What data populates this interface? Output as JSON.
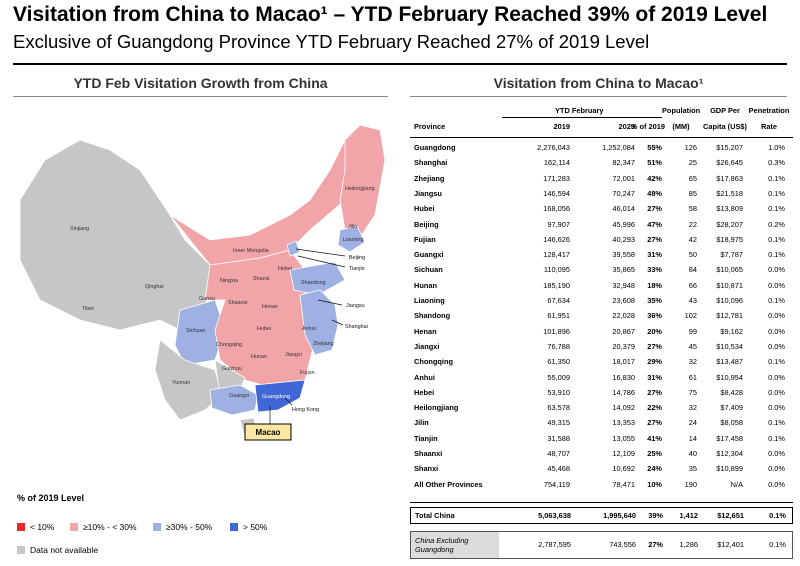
{
  "header": {
    "title": "Visitation from China to Macao¹ – YTD February Reached 39% of 2019 Level",
    "subtitle": "Exclusive of Guangdong Province YTD February Reached 27% of 2019 Level"
  },
  "colors": {
    "below_10": "#e8262c",
    "from_10_to_30": "#f2a5a9",
    "from_30_to_50": "#9fb0e3",
    "above_50": "#3f68d6",
    "not_available": "#c6c6c6"
  },
  "map": {
    "title": "YTD Feb Visitation Growth from China",
    "province_labels": [
      "Xinjiang",
      "Tibet",
      "Qinghai",
      "Gansu",
      "Inner Mongolia",
      "Ningxia",
      "Shaanxi",
      "Sichuan",
      "Yunnan",
      "Guizhou",
      "Guangxi",
      "Chongqing",
      "Hubei",
      "Hunan",
      "Henan",
      "Shanxi",
      "Hebei",
      "Shandong",
      "Jiangxi",
      "Anhui",
      "Zhejiang",
      "Fujian",
      "Guangdong",
      "Heilongjiang",
      "Jilin",
      "Liaoning"
    ],
    "callouts": [
      "Beijing",
      "Tianjin",
      "Jiangsu",
      "Shanghai",
      "Hong Kong"
    ],
    "macao_label": "Macao",
    "legend": {
      "title": "% of 2019 Level",
      "items": [
        {
          "label": "< 10%",
          "color": "#e8262c"
        },
        {
          "label": "≥10% - < 30%",
          "color": "#f2a5a9"
        },
        {
          "label": "≥30% - 50%",
          "color": "#9fb0e3"
        },
        {
          "label": "> 50%",
          "color": "#3f68d6"
        },
        {
          "label": "Data not available",
          "color": "#c6c6c6"
        }
      ]
    }
  },
  "chart_data": {
    "type": "table",
    "title": "Visitation from China to Macao¹",
    "group_header": "YTD February",
    "columns": [
      "Province",
      "2019",
      "2023",
      "% of 2019",
      "Population (MM)",
      "GDP Per Capita (US$)",
      "Penetration Rate"
    ],
    "header_lines": {
      "province": "Province",
      "y2019": "2019",
      "y2023": "2023",
      "pct": "% of 2019",
      "pop_top": "Population",
      "pop_bottom": "(MM)",
      "gdp_top": "GDP Per",
      "gdp_bottom": "Capita (US$)",
      "pen_top": "Penetration",
      "pen_bottom": "Rate"
    },
    "rows": [
      [
        "Guangdong",
        "2,276,043",
        "1,252,084",
        "55%",
        "126",
        "$15,207",
        "1.0%"
      ],
      [
        "Shanghai",
        "162,114",
        "82,347",
        "51%",
        "25",
        "$26,645",
        "0.3%"
      ],
      [
        "Zhejiang",
        "171,283",
        "72,001",
        "42%",
        "65",
        "$17,863",
        "0.1%"
      ],
      [
        "Jiangsu",
        "146,594",
        "70,247",
        "48%",
        "85",
        "$21,518",
        "0.1%"
      ],
      [
        "Hubei",
        "168,056",
        "46,014",
        "27%",
        "58",
        "$13,809",
        "0.1%"
      ],
      [
        "Beijing",
        "97,907",
        "45,996",
        "47%",
        "22",
        "$28,207",
        "0.2%"
      ],
      [
        "Fujian",
        "146,626",
        "40,293",
        "27%",
        "42",
        "$18,975",
        "0.1%"
      ],
      [
        "Guangxi",
        "128,417",
        "39,558",
        "31%",
        "50",
        "$7,787",
        "0.1%"
      ],
      [
        "Sichuan",
        "110,095",
        "35,865",
        "33%",
        "84",
        "$10,065",
        "0.0%"
      ],
      [
        "Hunan",
        "185,190",
        "32,948",
        "18%",
        "66",
        "$10,871",
        "0.0%"
      ],
      [
        "Liaoning",
        "67,634",
        "23,608",
        "35%",
        "43",
        "$10,096",
        "0.1%"
      ],
      [
        "Shandong",
        "61,951",
        "22,028",
        "36%",
        "102",
        "$12,781",
        "0.0%"
      ],
      [
        "Henan",
        "101,896",
        "20,867",
        "20%",
        "99",
        "$9,162",
        "0.0%"
      ],
      [
        "Jiangxi",
        "76,788",
        "20,379",
        "27%",
        "45",
        "$10,534",
        "0.0%"
      ],
      [
        "Chongqing",
        "61,350",
        "18,017",
        "29%",
        "32",
        "$13,487",
        "0.1%"
      ],
      [
        "Anhui",
        "55,009",
        "16,830",
        "31%",
        "61",
        "$10,954",
        "0.0%"
      ],
      [
        "Hebei",
        "53,910",
        "14,786",
        "27%",
        "75",
        "$8,428",
        "0.0%"
      ],
      [
        "Heilongjiang",
        "63,578",
        "14,092",
        "22%",
        "32",
        "$7,409",
        "0.0%"
      ],
      [
        "Jilin",
        "49,315",
        "13,353",
        "27%",
        "24",
        "$8,058",
        "0.1%"
      ],
      [
        "Tianjin",
        "31,588",
        "13,055",
        "41%",
        "14",
        "$17,458",
        "0.1%"
      ],
      [
        "Shaanxi",
        "48,707",
        "12,109",
        "25%",
        "40",
        "$12,304",
        "0.0%"
      ],
      [
        "Shanxi",
        "45,468",
        "10,692",
        "24%",
        "35",
        "$10,899",
        "0.0%"
      ],
      [
        "All Other Provinces",
        "754,119",
        "78,471",
        "10%",
        "190",
        "N/A",
        "0.0%"
      ]
    ],
    "total": [
      "Total China",
      "5,063,638",
      "1,995,640",
      "39%",
      "1,412",
      "$12,651",
      "0.1%"
    ],
    "excluding": [
      "China Excluding Guangdong",
      "2,787,595",
      "743,556",
      "27%",
      "1,286",
      "$12,401",
      "0.1%"
    ]
  }
}
